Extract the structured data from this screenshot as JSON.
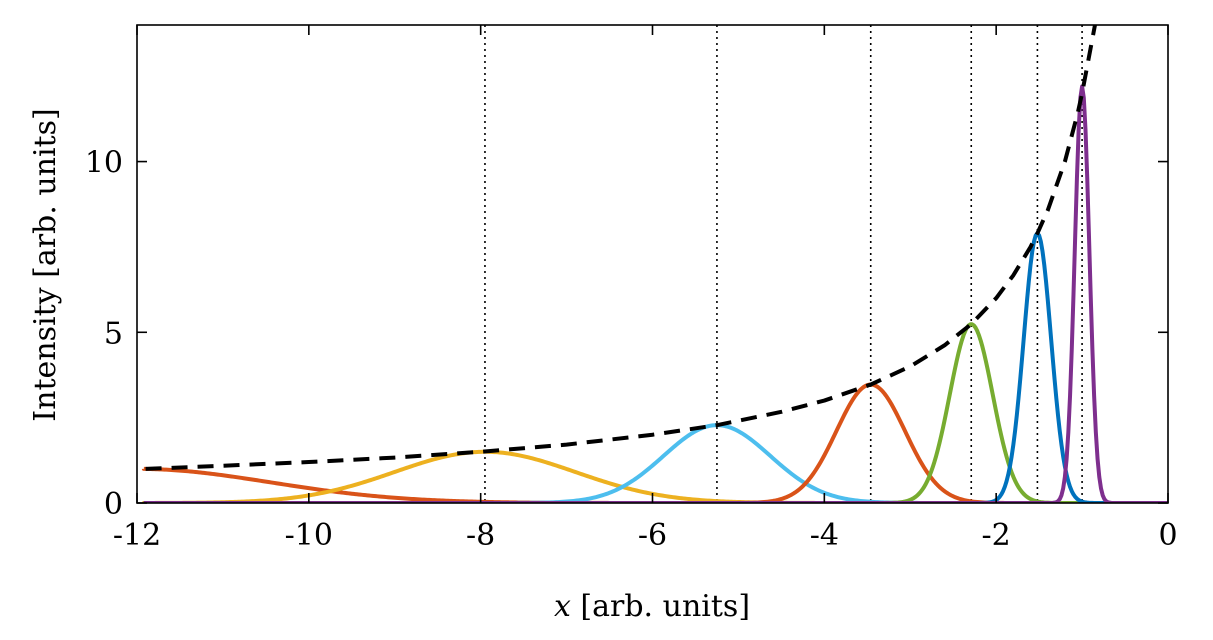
{
  "chart_data": {
    "type": "line",
    "xlabel_var": "x",
    "xlabel_units": " [arb. units]",
    "ylabel": "Intensity [arb. units]",
    "xlim": [
      -12,
      0
    ],
    "ylim": [
      0,
      14
    ],
    "x_ticks": [
      -12,
      -10,
      -8,
      -6,
      -4,
      -2,
      0
    ],
    "x_tick_labels": [
      "-12",
      "-10",
      "-8",
      "-6",
      "-4",
      "-2",
      "0"
    ],
    "y_ticks": [
      0,
      5,
      10
    ],
    "y_tick_labels": [
      "0",
      "5",
      "10"
    ],
    "grid": false,
    "box": true,
    "envelope": {
      "style": "dashed",
      "color": "#000000",
      "x": [
        -11.9,
        -11,
        -10,
        -9,
        -8,
        -7,
        -6,
        -5.25,
        -4.5,
        -4,
        -3.46,
        -3,
        -2.6,
        -2.29,
        -2,
        -1.8,
        -1.6,
        -1.52,
        -1.4,
        -1.2,
        -1.05,
        -1.0,
        -0.9,
        -0.85
      ],
      "y": [
        1.0,
        1.09,
        1.2,
        1.33,
        1.5,
        1.71,
        2.0,
        2.28,
        2.67,
        3.0,
        3.47,
        4.0,
        4.62,
        5.24,
        6.0,
        6.67,
        7.5,
        7.9,
        8.57,
        10.0,
        11.43,
        12.0,
        13.33,
        14.0
      ]
    },
    "peaks": [
      {
        "center": -12.0,
        "amplitude": 1.0,
        "sigma": 1.55,
        "color": "#D95319"
      },
      {
        "center": -7.95,
        "amplitude": 1.5,
        "sigma": 1.05,
        "color": "#EDB120"
      },
      {
        "center": -5.25,
        "amplitude": 2.28,
        "sigma": 0.62,
        "color": "#4DBEEE"
      },
      {
        "center": -3.46,
        "amplitude": 3.47,
        "sigma": 0.4,
        "color": "#D95319"
      },
      {
        "center": -2.29,
        "amplitude": 5.24,
        "sigma": 0.25,
        "color": "#77AC30"
      },
      {
        "center": -1.52,
        "amplitude": 7.9,
        "sigma": 0.16,
        "color": "#0072BD"
      },
      {
        "center": -1.0,
        "amplitude": 12.2,
        "sigma": 0.085,
        "color": "#7E2F8E"
      }
    ],
    "vlines": {
      "style": "dotted",
      "color": "#000000",
      "x": [
        -7.95,
        -5.25,
        -3.46,
        -2.29,
        -1.52,
        -1.0
      ]
    }
  }
}
